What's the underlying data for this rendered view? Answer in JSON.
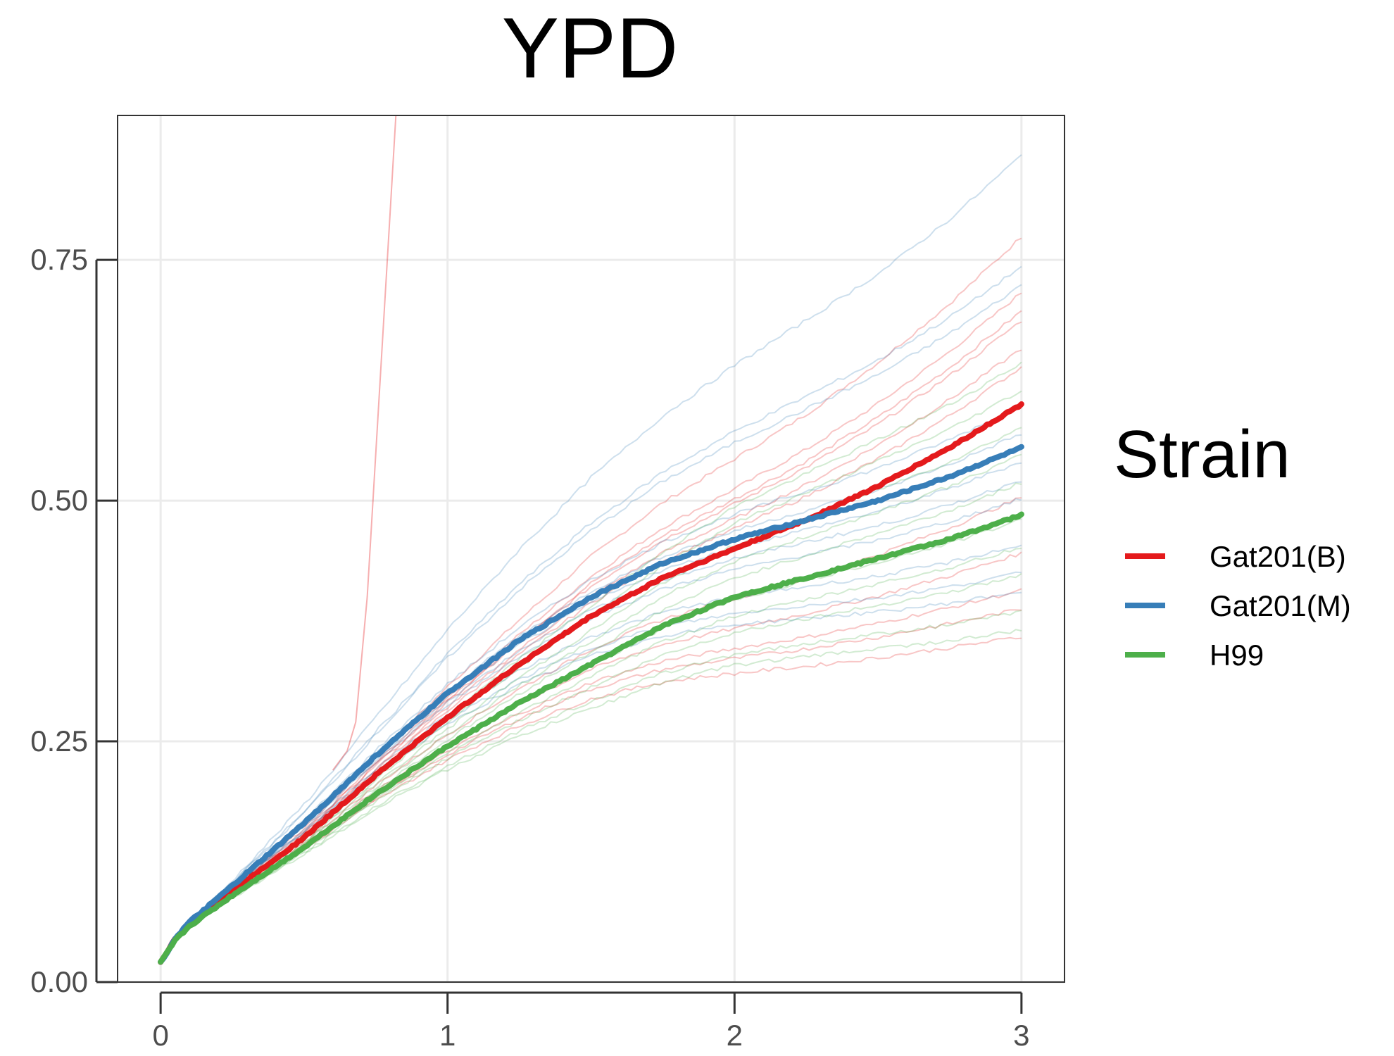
{
  "chart_data": {
    "type": "line",
    "title": "YPD",
    "xlabel": "",
    "ylabel": "",
    "xlim": [
      -0.15,
      3.15
    ],
    "ylim": [
      0.0,
      0.9
    ],
    "x_ticks": [
      0,
      1,
      2,
      3
    ],
    "x_tick_labels": [
      "0",
      "1",
      "2",
      "3"
    ],
    "y_ticks": [
      0.0,
      0.25,
      0.5,
      0.75
    ],
    "y_tick_labels": [
      "0.00",
      "0.25",
      "0.50",
      "0.75"
    ],
    "grid": true,
    "legend": {
      "title": "Strain",
      "position": "right"
    },
    "series": [
      {
        "name": "Gat201(B)",
        "color": "#e41a1c",
        "x": [
          0,
          0.05,
          0.1,
          0.25,
          0.5,
          0.75,
          1.0,
          1.25,
          1.5,
          1.75,
          2.0,
          2.25,
          2.5,
          2.75,
          3.0
        ],
        "values": [
          0.02,
          0.045,
          0.06,
          0.095,
          0.15,
          0.215,
          0.275,
          0.33,
          0.38,
          0.42,
          0.45,
          0.48,
          0.515,
          0.555,
          0.6
        ]
      },
      {
        "name": "Gat201(M)",
        "color": "#377eb8",
        "x": [
          0,
          0.05,
          0.1,
          0.25,
          0.5,
          0.75,
          1.0,
          1.25,
          1.5,
          1.75,
          2.0,
          2.25,
          2.5,
          2.75,
          3.0
        ],
        "values": [
          0.02,
          0.045,
          0.062,
          0.1,
          0.165,
          0.235,
          0.3,
          0.355,
          0.4,
          0.435,
          0.46,
          0.48,
          0.5,
          0.525,
          0.555
        ]
      },
      {
        "name": "H99",
        "color": "#4daf4a",
        "x": [
          0,
          0.05,
          0.1,
          0.25,
          0.5,
          0.75,
          1.0,
          1.25,
          1.5,
          1.75,
          2.0,
          2.25,
          2.5,
          2.75,
          3.0
        ],
        "values": [
          0.02,
          0.043,
          0.058,
          0.09,
          0.14,
          0.195,
          0.245,
          0.29,
          0.33,
          0.37,
          0.4,
          0.42,
          0.44,
          0.46,
          0.485
        ]
      }
    ],
    "replicate_endpoints": {
      "Gat201(B)": [
        0.78,
        0.72,
        0.7,
        0.69,
        0.66,
        0.64,
        0.6,
        0.5,
        0.44,
        0.4,
        0.38,
        0.35
      ],
      "Gat201(M)": [
        0.87,
        0.75,
        0.73,
        0.6,
        0.57,
        0.54,
        0.52,
        0.5,
        0.45,
        0.42,
        0.4
      ],
      "H99": [
        0.65,
        0.62,
        0.58,
        0.55,
        0.52,
        0.48,
        0.45,
        0.42,
        0.38,
        0.36
      ]
    },
    "outlier_trace": {
      "strain": "Gat201(B)",
      "x": [
        0.6,
        0.65,
        0.68,
        0.72,
        0.76,
        0.8,
        0.82
      ],
      "values": [
        0.22,
        0.24,
        0.27,
        0.4,
        0.6,
        0.8,
        0.9
      ]
    }
  }
}
